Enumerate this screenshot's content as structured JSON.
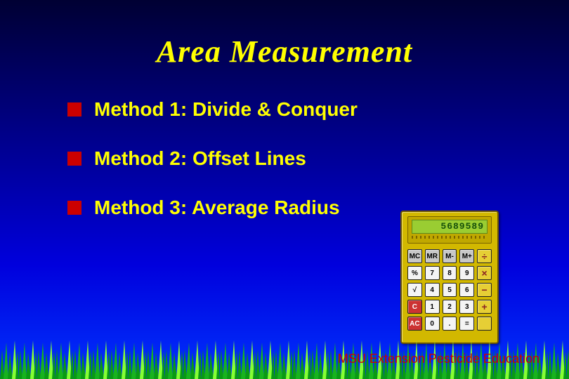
{
  "title": "Area Measurement",
  "title_color": "#ffff00",
  "title_font": "Times New Roman, italic bold",
  "title_fontsize": 44,
  "bullets": [
    {
      "label": "Method 1: Divide & Conquer"
    },
    {
      "label": "Method 2: Offset Lines"
    },
    {
      "label": "Method 3: Average Radius"
    }
  ],
  "bullet_marker_color": "#cc0000",
  "bullet_text_color": "#ffff00",
  "bullet_fontsize": 28,
  "footer": "MSU Extension  Pesticide Education",
  "footer_color": "#cc0000",
  "footer_fontsize": 18,
  "background_gradient": [
    "#000033",
    "#000088",
    "#0000dd",
    "#0033ff"
  ],
  "grass": {
    "fill": "#0a9a14",
    "highlight": "#86ff34",
    "height": 60
  },
  "calculator": {
    "display_value": "5689589",
    "body_color": "#d2b800",
    "display_color": "#9acd32",
    "key_rows": [
      [
        {
          "t": "MC",
          "c": "g"
        },
        {
          "t": "MR",
          "c": "g"
        },
        {
          "t": "M-",
          "c": "g"
        },
        {
          "t": "M+",
          "c": "g"
        },
        {
          "t": "÷",
          "c": "y"
        }
      ],
      [
        {
          "t": "%",
          "c": "w"
        },
        {
          "t": "7",
          "c": "w"
        },
        {
          "t": "8",
          "c": "w"
        },
        {
          "t": "9",
          "c": "w"
        },
        {
          "t": "×",
          "c": "y"
        }
      ],
      [
        {
          "t": "√",
          "c": "w"
        },
        {
          "t": "4",
          "c": "w"
        },
        {
          "t": "5",
          "c": "w"
        },
        {
          "t": "6",
          "c": "w"
        },
        {
          "t": "−",
          "c": "y"
        }
      ],
      [
        {
          "t": "C",
          "c": "r"
        },
        {
          "t": "1",
          "c": "w"
        },
        {
          "t": "2",
          "c": "w"
        },
        {
          "t": "3",
          "c": "w"
        },
        {
          "t": "+",
          "c": "y"
        }
      ],
      [
        {
          "t": "AC",
          "c": "r"
        },
        {
          "t": "0",
          "c": "w"
        },
        {
          "t": ".",
          "c": "w"
        },
        {
          "t": "=",
          "c": "w"
        },
        {
          "t": "",
          "c": "y"
        }
      ]
    ]
  }
}
